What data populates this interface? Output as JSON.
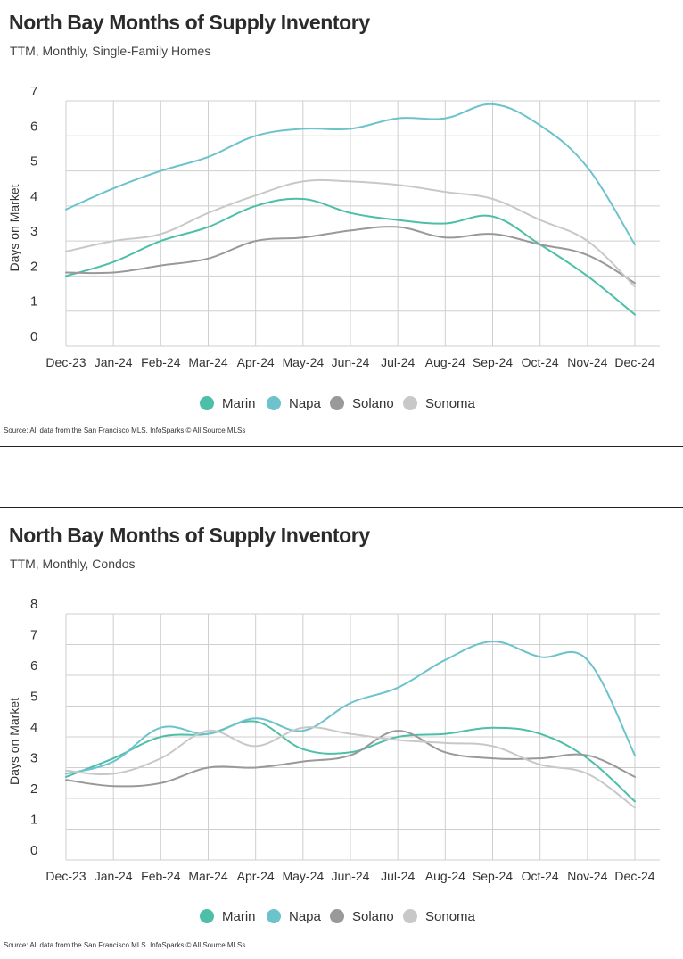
{
  "source_text": "Source:  All data from the San Francisco MLS. InfoSparks © All Source MLSs",
  "series_meta": [
    {
      "name": "Marin",
      "color": "#4dbfa8"
    },
    {
      "name": "Napa",
      "color": "#6cc3cc"
    },
    {
      "name": "Solano",
      "color": "#999999"
    },
    {
      "name": "Sonoma",
      "color": "#c8c8c8"
    }
  ],
  "chart_data": [
    {
      "type": "line",
      "title": "North Bay Months of Supply Inventory",
      "subtitle": "TTM, Monthly, Single-Family Homes",
      "ylabel": "Days on Market",
      "xlabel": "",
      "ylim": [
        0,
        7
      ],
      "yticks": [
        "0",
        "1",
        "2",
        "3",
        "4",
        "5",
        "6",
        "7"
      ],
      "grid": true,
      "legend_position": "bottom",
      "categories": [
        "Dec-23",
        "Jan-24",
        "Feb-24",
        "Mar-24",
        "Apr-24",
        "May-24",
        "Jun-24",
        "Jul-24",
        "Aug-24",
        "Sep-24",
        "Oct-24",
        "Nov-24",
        "Dec-24"
      ],
      "series": [
        {
          "name": "Marin",
          "values": [
            2.0,
            2.4,
            3.0,
            3.4,
            4.0,
            4.2,
            3.8,
            3.6,
            3.5,
            3.7,
            2.9,
            2.0,
            0.9
          ]
        },
        {
          "name": "Napa",
          "values": [
            3.9,
            4.5,
            5.0,
            5.4,
            6.0,
            6.2,
            6.2,
            6.5,
            6.5,
            6.9,
            6.3,
            5.1,
            2.9
          ]
        },
        {
          "name": "Solano",
          "values": [
            2.1,
            2.1,
            2.3,
            2.5,
            3.0,
            3.1,
            3.3,
            3.4,
            3.1,
            3.2,
            2.9,
            2.6,
            1.8
          ]
        },
        {
          "name": "Sonoma",
          "values": [
            2.7,
            3.0,
            3.2,
            3.8,
            4.3,
            4.7,
            4.7,
            4.6,
            4.4,
            4.2,
            3.6,
            3.0,
            1.7
          ]
        }
      ]
    },
    {
      "type": "line",
      "title": "North Bay Months of Supply Inventory",
      "subtitle": "TTM, Monthly, Condos",
      "ylabel": "Days on Market",
      "xlabel": "",
      "ylim": [
        0,
        8
      ],
      "yticks": [
        "0",
        "1",
        "2",
        "3",
        "4",
        "5",
        "6",
        "7",
        "8"
      ],
      "grid": true,
      "legend_position": "bottom",
      "categories": [
        "Dec-23",
        "Jan-24",
        "Feb-24",
        "Mar-24",
        "Apr-24",
        "May-24",
        "Jun-24",
        "Jul-24",
        "Aug-24",
        "Sep-24",
        "Oct-24",
        "Nov-24",
        "Dec-24"
      ],
      "series": [
        {
          "name": "Marin",
          "values": [
            2.7,
            3.3,
            4.0,
            4.1,
            4.5,
            3.6,
            3.5,
            4.0,
            4.1,
            4.3,
            4.1,
            3.3,
            1.9
          ]
        },
        {
          "name": "Napa",
          "values": [
            2.8,
            3.2,
            4.3,
            4.1,
            4.6,
            4.2,
            5.1,
            5.6,
            6.5,
            7.1,
            6.6,
            6.5,
            3.4
          ]
        },
        {
          "name": "Solano",
          "values": [
            2.6,
            2.4,
            2.5,
            3.0,
            3.0,
            3.2,
            3.4,
            4.2,
            3.5,
            3.3,
            3.3,
            3.4,
            2.7
          ]
        },
        {
          "name": "Sonoma",
          "values": [
            2.9,
            2.8,
            3.3,
            4.2,
            3.7,
            4.3,
            4.1,
            3.9,
            3.8,
            3.7,
            3.1,
            2.8,
            1.7
          ]
        }
      ]
    }
  ]
}
